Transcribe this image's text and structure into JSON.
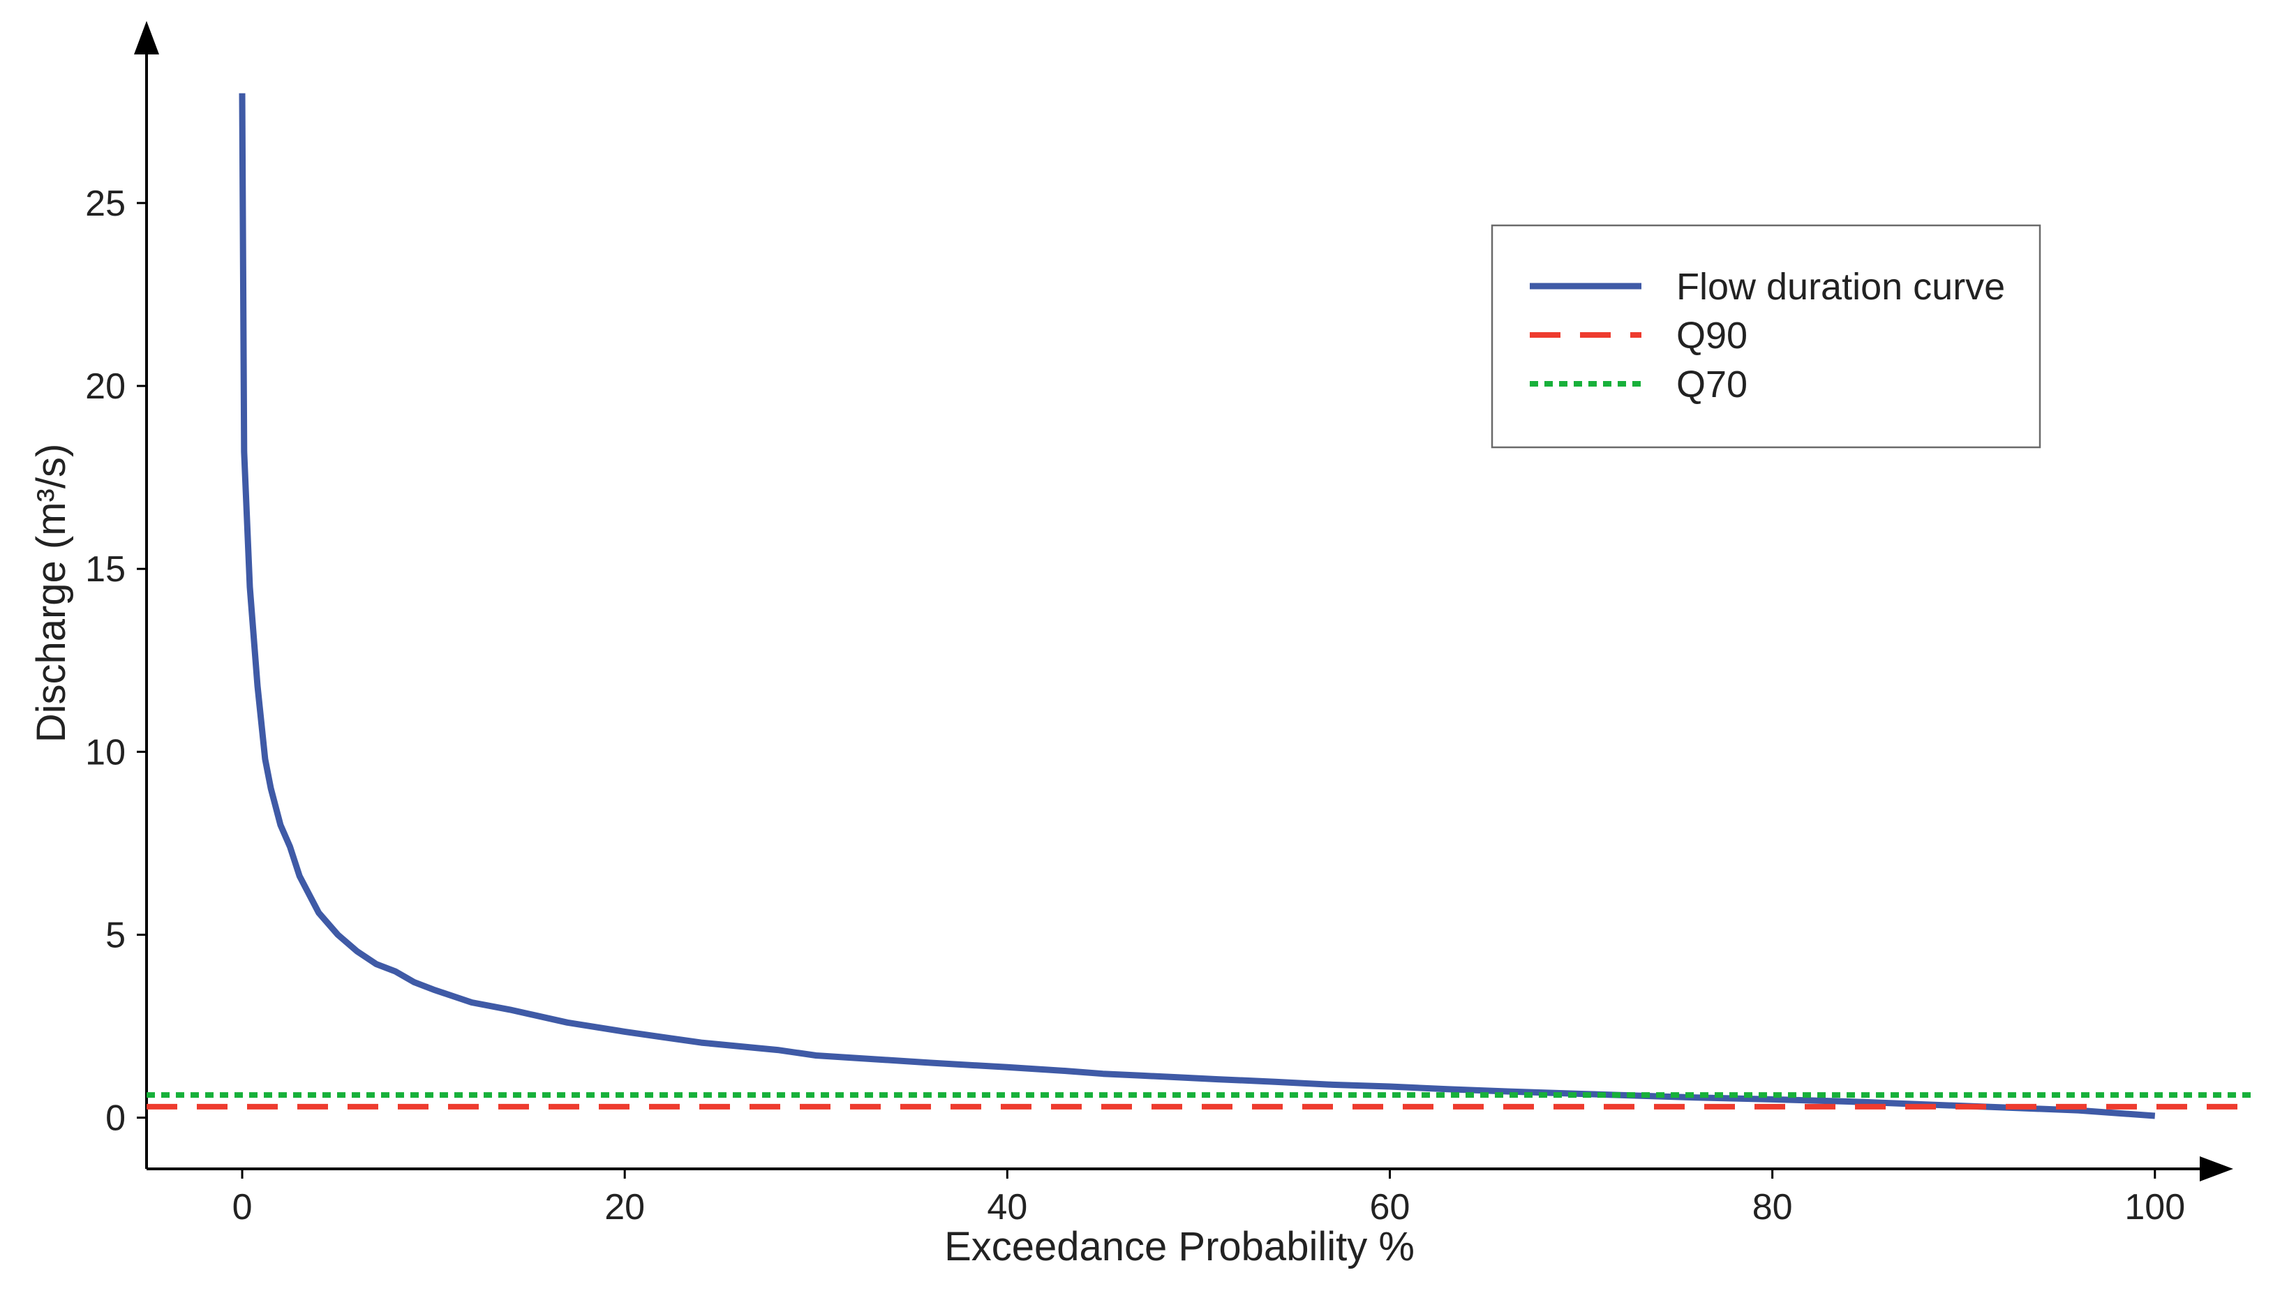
{
  "chart_data": {
    "type": "line",
    "title": "",
    "xlabel": "Exceedance Probability %",
    "ylabel": "Discharge (m³/s)",
    "xlim": [
      -5,
      103
    ],
    "ylim": [
      -1.4,
      29.5
    ],
    "xticks": [
      0,
      20,
      40,
      60,
      80,
      100
    ],
    "yticks": [
      0,
      5,
      10,
      15,
      20,
      25
    ],
    "grid": false,
    "legend_position": "top-right",
    "series": [
      {
        "name": "Flow duration curve",
        "style": "solid",
        "color": "#3f5aa6",
        "x": [
          0,
          0.1,
          0.4,
          0.8,
          1.2,
          1.5,
          2,
          2.5,
          3,
          4,
          5,
          6,
          7,
          8,
          9,
          10,
          12,
          14,
          17,
          20,
          22,
          24,
          26,
          28,
          30,
          33,
          36,
          40,
          43,
          45,
          47,
          49,
          51,
          54,
          57,
          60,
          63,
          66,
          70,
          73,
          76,
          80,
          84,
          88,
          92,
          96,
          100
        ],
        "y": [
          28,
          18.2,
          14.5,
          11.8,
          9.8,
          9.0,
          8.0,
          7.4,
          6.6,
          5.6,
          5.0,
          4.55,
          4.2,
          4.0,
          3.7,
          3.5,
          3.15,
          2.95,
          2.6,
          2.35,
          2.2,
          2.05,
          1.95,
          1.85,
          1.7,
          1.6,
          1.5,
          1.38,
          1.28,
          1.2,
          1.15,
          1.1,
          1.05,
          0.98,
          0.9,
          0.85,
          0.78,
          0.72,
          0.65,
          0.6,
          0.55,
          0.5,
          0.44,
          0.36,
          0.28,
          0.2,
          0.05
        ]
      },
      {
        "name": "Q90",
        "style": "dashed",
        "color": "#ee3b2e",
        "y": 0.3
      },
      {
        "name": "Q70",
        "style": "dotted",
        "color": "#17b03a",
        "y": 0.62
      }
    ]
  }
}
